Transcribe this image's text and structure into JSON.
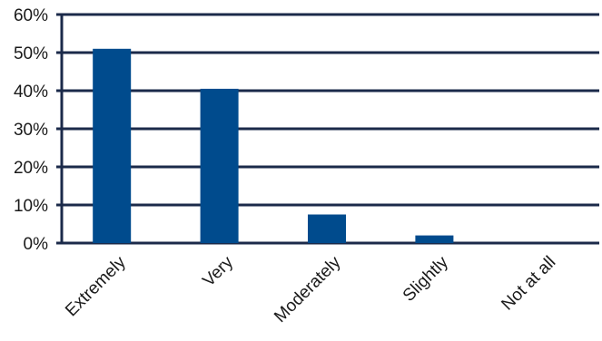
{
  "chart_data": {
    "type": "bar",
    "categories": [
      "Extremely",
      "Very",
      "Moderately",
      "Slightly",
      "Not at all"
    ],
    "values": [
      51,
      40.5,
      7.5,
      2,
      0
    ],
    "ylim": [
      0,
      60
    ],
    "yticks": [
      0,
      10,
      20,
      30,
      40,
      50,
      60
    ],
    "ytick_labels": [
      "0%",
      "10%",
      "20%",
      "30%",
      "40%",
      "50%",
      "60%"
    ],
    "grid": true,
    "legend": "none",
    "colors": {
      "bar": "#004B8D",
      "grid": "#1B2A4A",
      "text": "#1a1a1a"
    }
  }
}
